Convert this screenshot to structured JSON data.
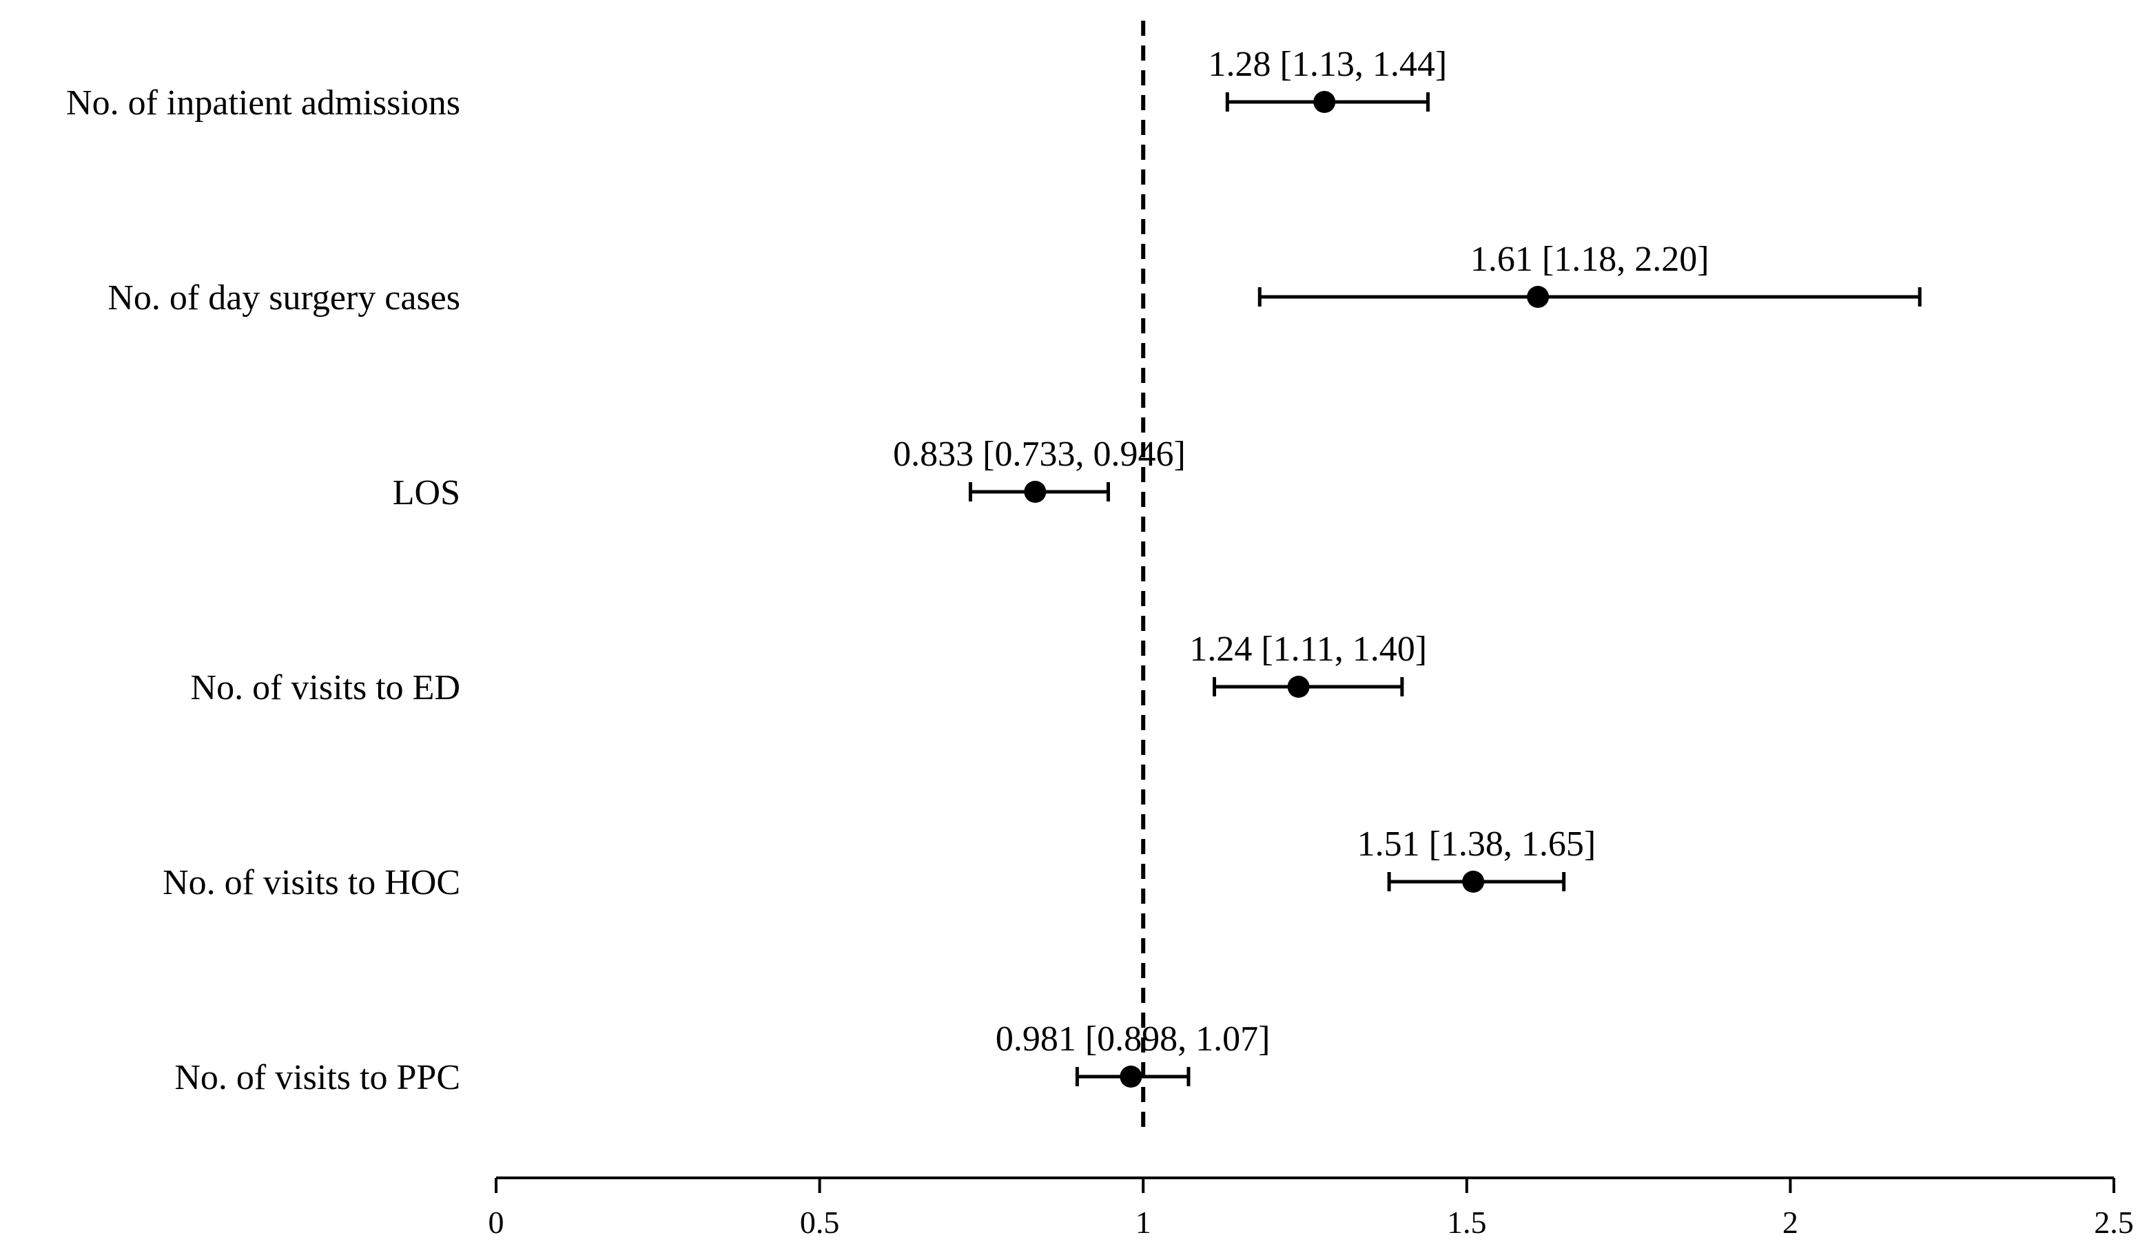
{
  "chart_data": {
    "type": "forest",
    "title": "",
    "xlabel": "",
    "ylabel": "",
    "xlim": [
      0,
      2.5
    ],
    "x_ticks": [
      0,
      0.5,
      1,
      1.5,
      2,
      2.5
    ],
    "x_tick_labels": [
      "0",
      "0.5",
      "1",
      "1.5",
      "2",
      "2.5"
    ],
    "reference_line": 1,
    "reference_line_style": "dashed",
    "grid": false,
    "marker_color": "#000000",
    "rows": [
      {
        "label": "No. of inpatient admissions",
        "estimate": 1.28,
        "lower": 1.13,
        "upper": 1.44,
        "annotation": "1.28 [1.13, 1.44]"
      },
      {
        "label": "No. of day surgery cases",
        "estimate": 1.61,
        "lower": 1.18,
        "upper": 2.2,
        "annotation": "1.61 [1.18, 2.20]"
      },
      {
        "label": "LOS",
        "estimate": 0.833,
        "lower": 0.733,
        "upper": 0.946,
        "annotation": "0.833 [0.733, 0.946]"
      },
      {
        "label": "No. of visits to ED",
        "estimate": 1.24,
        "lower": 1.11,
        "upper": 1.4,
        "annotation": "1.24 [1.11, 1.40]"
      },
      {
        "label": "No. of visits to HOC",
        "estimate": 1.51,
        "lower": 1.38,
        "upper": 1.65,
        "annotation": "1.51 [1.38, 1.65]"
      },
      {
        "label": "No. of visits to PPC",
        "estimate": 0.981,
        "lower": 0.898,
        "upper": 1.07,
        "annotation": "0.981 [0.898, 1.07]"
      }
    ]
  }
}
